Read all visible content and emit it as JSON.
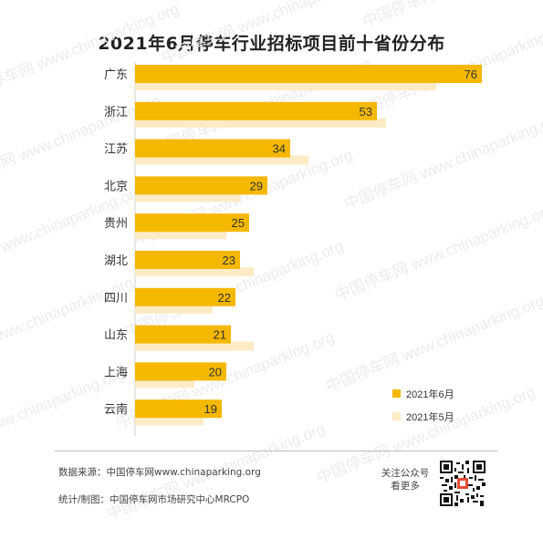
{
  "title": "2021年6月停车行业招标项目前十省份分布",
  "watermark": {
    "line1": "www.chinaparking.org",
    "line2": "中国停车网"
  },
  "footer": {
    "source": "数据来源：中国停车网www.chinaparking.org",
    "maker": "统计/制图：中国停车网市场研究中心MRCPO",
    "follow_line1": "关注公众号",
    "follow_line2": "看更多"
  },
  "colors": {
    "june": "#F5B800",
    "may": "#FCEBC4"
  },
  "chart_data": {
    "type": "bar",
    "orientation": "horizontal",
    "categories": [
      "广东",
      "浙江",
      "江苏",
      "北京",
      "贵州",
      "湖北",
      "四川",
      "山东",
      "上海",
      "云南"
    ],
    "series": [
      {
        "name": "2021年6月",
        "values": [
          76,
          53,
          34,
          29,
          25,
          23,
          22,
          21,
          20,
          19
        ]
      },
      {
        "name": "2021年5月",
        "values": [
          66,
          55,
          38,
          23,
          20,
          26,
          17,
          26,
          13,
          15
        ]
      }
    ],
    "data_labels": "2021年6月",
    "xlim": [
      0,
      80
    ],
    "legend": "bottom-right",
    "grid": false
  }
}
